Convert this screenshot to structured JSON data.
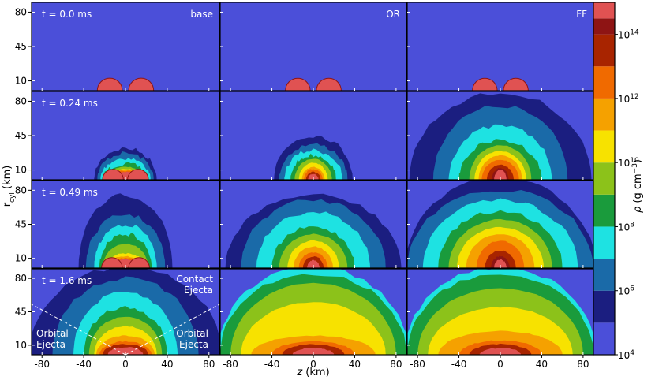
{
  "chart_data": {
    "type": "heatmap",
    "rows": [
      {
        "time_label": "t = 0.0 ms",
        "time_ms": 0.0
      },
      {
        "time_label": "t = 0.24 ms",
        "time_ms": 0.24
      },
      {
        "time_label": "t = 0.49 ms",
        "time_ms": 0.49
      },
      {
        "time_label": "t = 1.6 ms",
        "time_ms": 1.6
      }
    ],
    "columns": [
      "base",
      "OR",
      "FF"
    ],
    "xlabel": "z (km)",
    "ylabel": "r_cyl (km)",
    "xlim": [
      -90,
      90
    ],
    "ylim": [
      0,
      90
    ],
    "x_ticks": [
      -80,
      -40,
      0,
      40,
      80
    ],
    "x_tick_labels": [
      "-80",
      "-40",
      "0",
      "40",
      "80"
    ],
    "y_ticks": [
      10,
      45,
      80
    ],
    "y_tick_labels": [
      "10",
      "45",
      "80"
    ],
    "colorbar": {
      "label": "ρ (g cm⁻³)",
      "log10_range": [
        4,
        15
      ],
      "tick_exponents": [
        4,
        6,
        8,
        10,
        12,
        14
      ],
      "tick_labels": [
        "10^4",
        "10^6",
        "10^8",
        "10^10",
        "10^12",
        "10^14"
      ],
      "levels": [
        {
          "log_rho": [
            4,
            5
          ],
          "color": "#4b4fd9"
        },
        {
          "log_rho": [
            5,
            6
          ],
          "color": "#1b1e80"
        },
        {
          "log_rho": [
            6,
            7
          ],
          "color": "#1a6aa8"
        },
        {
          "log_rho": [
            7,
            8
          ],
          "color": "#1ee2e2"
        },
        {
          "log_rho": [
            8,
            9
          ],
          "color": "#1a9b3c"
        },
        {
          "log_rho": [
            9,
            10
          ],
          "color": "#8cc21a"
        },
        {
          "log_rho": [
            10,
            11
          ],
          "color": "#f7e200"
        },
        {
          "log_rho": [
            11,
            12
          ],
          "color": "#f5a100"
        },
        {
          "log_rho": [
            12,
            13
          ],
          "color": "#f06a00"
        },
        {
          "log_rho": [
            13,
            14
          ],
          "color": "#a82400"
        },
        {
          "log_rho": [
            14,
            14.5
          ],
          "color": "#8e1414"
        },
        {
          "log_rho": [
            14.5,
            15
          ],
          "color": "#e05252"
        }
      ]
    },
    "annotations": {
      "contact_ejecta": [
        "Contact",
        "Ejecta"
      ],
      "orbital_ejecta_left": [
        "Orbital",
        "Ejecta"
      ],
      "orbital_ejecta_right": [
        "Orbital",
        "Ejecta"
      ]
    },
    "fields": [
      [
        {
          "core_rho": 15,
          "stars_at_z": [
            -15,
            15
          ],
          "star_radius_km": 12,
          "contours": []
        },
        {
          "core_rho": 15,
          "stars_at_z": [
            -15,
            15
          ],
          "star_radius_km": 12,
          "contours": []
        },
        {
          "core_rho": 15,
          "stars_at_z": [
            -15,
            15
          ],
          "star_radius_km": 12,
          "contours": []
        }
      ],
      [
        {
          "contours": [
            [
              5,
              30,
              32
            ],
            [
              6,
              27,
              27
            ],
            [
              7,
              24,
              22
            ],
            [
              8,
              22,
              16
            ],
            [
              9,
              21,
              13
            ],
            [
              10,
              20,
              11
            ],
            [
              11,
              19,
              10
            ],
            [
              12,
              18,
              9
            ],
            [
              14.7,
              12,
              8
            ]
          ],
          "stars_at_z": [
            -12,
            12
          ]
        },
        {
          "contours": [
            [
              5,
              38,
              45
            ],
            [
              6,
              33,
              36
            ],
            [
              7,
              28,
              30
            ],
            [
              8,
              22,
              25
            ],
            [
              9,
              18,
              21
            ],
            [
              10,
              14,
              17
            ],
            [
              11,
              11,
              13
            ],
            [
              12,
              9,
              11
            ],
            [
              13,
              7,
              8
            ],
            [
              14.7,
              5,
              6
            ]
          ]
        },
        {
          "contours": [
            [
              5,
              88,
              88
            ],
            [
              6,
              65,
              75
            ],
            [
              7,
              50,
              55
            ],
            [
              8,
              40,
              40
            ],
            [
              9,
              30,
              35
            ],
            [
              10,
              25,
              29
            ],
            [
              11,
              21,
              25
            ],
            [
              12,
              18,
              20
            ],
            [
              13,
              13,
              15
            ],
            [
              14.3,
              8,
              12
            ],
            [
              14.7,
              6,
              10
            ]
          ]
        }
      ],
      [
        {
          "contours": [
            [
              5,
              45,
              75
            ],
            [
              6,
              38,
              55
            ],
            [
              7,
              30,
              45
            ],
            [
              8,
              25,
              35
            ],
            [
              9,
              22,
              25
            ],
            [
              10,
              20,
              15
            ],
            [
              11,
              19,
              12
            ],
            [
              12,
              18,
              10
            ],
            [
              14.7,
              14,
              9
            ]
          ],
          "stars_at_z": [
            -13,
            13
          ]
        },
        {
          "contours": [
            [
              5,
              85,
              75
            ],
            [
              6,
              70,
              70
            ],
            [
              7,
              55,
              58
            ],
            [
              8,
              40,
              42
            ],
            [
              9,
              33,
              35
            ],
            [
              10,
              25,
              28
            ],
            [
              11,
              19,
              22
            ],
            [
              12,
              14,
              16
            ],
            [
              13,
              10,
              12
            ],
            [
              14.7,
              6,
              8
            ]
          ]
        },
        {
          "contours": [
            [
              5,
              92,
              92
            ],
            [
              6,
              90,
              80
            ],
            [
              7,
              75,
              70
            ],
            [
              8,
              60,
              58
            ],
            [
              9,
              50,
              50
            ],
            [
              10,
              42,
              42
            ],
            [
              11,
              33,
              35
            ],
            [
              12,
              23,
              28
            ],
            [
              13,
              15,
              18
            ],
            [
              14.3,
              9,
              12
            ],
            [
              14.7,
              6,
              9
            ]
          ]
        }
      ],
      [
        {
          "contours": [
            [
              5,
              92,
              92
            ],
            [
              6,
              70,
              80
            ],
            [
              7,
              50,
              65
            ],
            [
              8,
              40,
              50
            ],
            [
              9,
              35,
              40
            ],
            [
              10,
              30,
              30
            ],
            [
              11,
              28,
              20
            ],
            [
              12,
              25,
              14
            ],
            [
              13,
              22,
              11
            ],
            [
              14.7,
              17,
              8
            ]
          ]
        },
        {
          "contours": [
            [
              7,
              92,
              92
            ],
            [
              8,
              90,
              85
            ],
            [
              9,
              80,
              75
            ],
            [
              10,
              70,
              55
            ],
            [
              11,
              60,
              20
            ],
            [
              12,
              40,
              14
            ],
            [
              13,
              30,
              11
            ],
            [
              14.7,
              20,
              7
            ]
          ]
        },
        {
          "contours": [
            [
              7,
              92,
              92
            ],
            [
              8,
              90,
              85
            ],
            [
              9,
              80,
              70
            ],
            [
              10,
              70,
              50
            ],
            [
              11,
              60,
              25
            ],
            [
              12,
              40,
              15
            ],
            [
              13,
              30,
              11
            ],
            [
              14.7,
              20,
              7
            ]
          ]
        }
      ]
    ]
  }
}
